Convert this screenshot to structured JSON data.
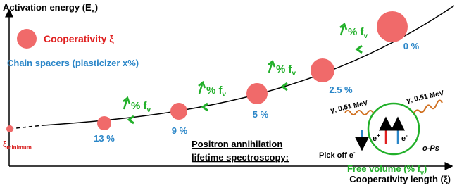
{
  "axes": {
    "y_label": {
      "main": "Activation energy (E",
      "sub": "a",
      "end": ")"
    },
    "x_label": "Cooperativity length (ξ)"
  },
  "legend": {
    "cooperativity": "Cooperativity ξ",
    "spacers": "Chain spacers (plasticizer x%)"
  },
  "xi_min": {
    "main": "ξ",
    "sub": "minimum"
  },
  "points": [
    {
      "label": "13 %"
    },
    {
      "label": "9 %"
    },
    {
      "label": "5 %"
    },
    {
      "label": "2.5 %"
    },
    {
      "label": "0 %"
    }
  ],
  "free_volume_marks": [
    {
      "text": "% f",
      "sub": "v"
    },
    {
      "text": "% f",
      "sub": "v"
    },
    {
      "text": "% f",
      "sub": "v"
    },
    {
      "text": "% f",
      "sub": "v"
    }
  ],
  "pals": {
    "title_lines": [
      "Positron annihilation",
      "lifetime spectroscopy:"
    ],
    "gamma_left": "γ, 0.51 MeV",
    "gamma_right": "γ, 0.51 MeV",
    "e_plus": {
      "main": "e",
      "sup": "+"
    },
    "e_minus": {
      "main": "e",
      "sup": "-"
    },
    "ops": "o-Ps",
    "pick_off": {
      "main": "Pick off e",
      "sup": "-"
    },
    "free_volume": {
      "main": "Free volume (% f",
      "sub": "v",
      "end": ")"
    }
  }
}
